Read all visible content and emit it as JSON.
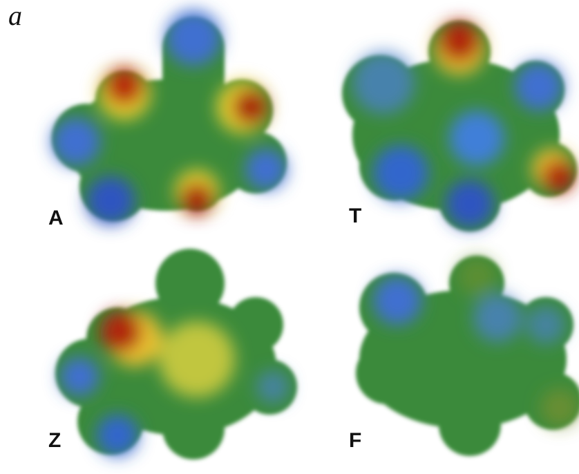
{
  "panel_label": "a",
  "molecules": [
    {
      "label": "A"
    },
    {
      "label": "T"
    },
    {
      "label": "Z"
    },
    {
      "label": "F"
    }
  ]
}
